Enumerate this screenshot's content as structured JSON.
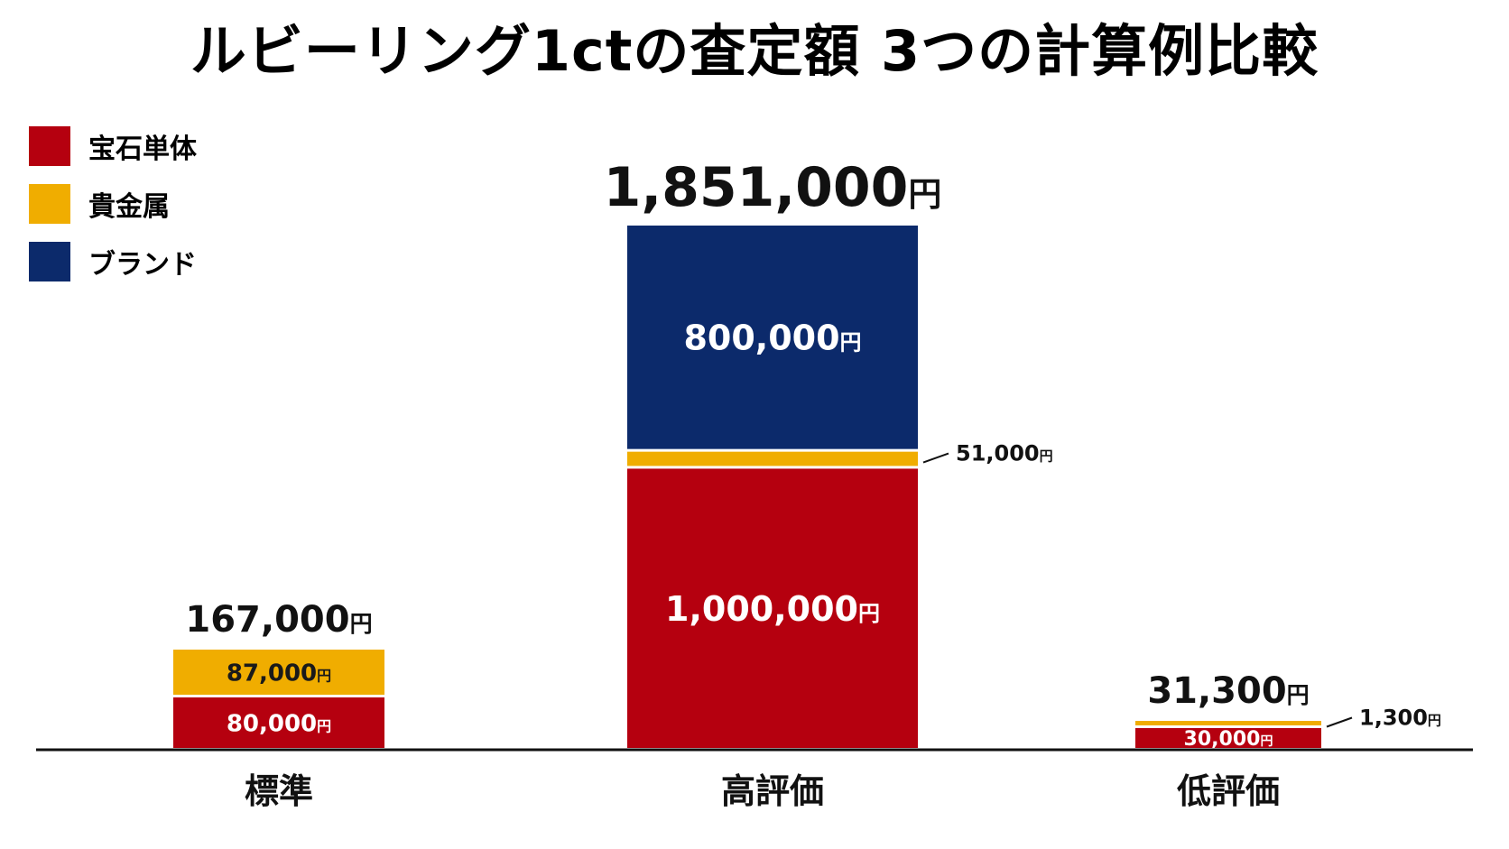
{
  "chart_data": {
    "type": "bar",
    "stacked": true,
    "title": "ルビーリング1ctの査定額 3つの計算例比較",
    "unit": "円",
    "categories": [
      "標準",
      "高評価",
      "低評価"
    ],
    "series": [
      {
        "name": "宝石単体",
        "color": "#b5000f",
        "values": [
          80000,
          1000000,
          30000
        ],
        "labels": [
          "80,000",
          "1,000,000",
          "30,000"
        ]
      },
      {
        "name": "貴金属",
        "color": "#f0ad00",
        "values": [
          87000,
          51000,
          1300
        ],
        "labels": [
          "87,000",
          "51,000",
          "1,300"
        ]
      },
      {
        "name": "ブランド",
        "color": "#0c2a6b",
        "values": [
          0,
          800000,
          0
        ],
        "labels": [
          "",
          "800,000",
          ""
        ]
      }
    ],
    "totals": [
      167000,
      1851000,
      31300
    ],
    "total_labels": [
      "167,000",
      "1,851,000",
      "31,300"
    ],
    "legend_position": "top-left",
    "grid": false
  }
}
